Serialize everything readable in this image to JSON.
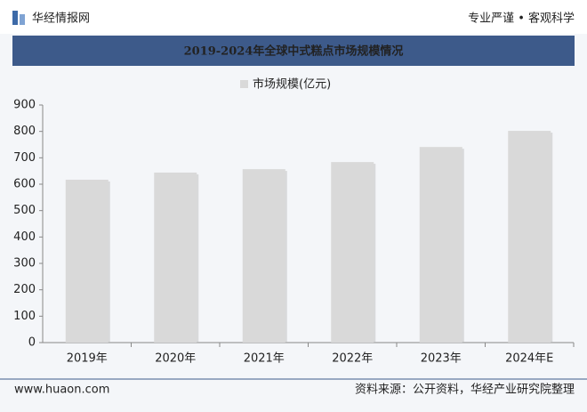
{
  "brand": "华经情报网",
  "slogan": "专业严谨 • 客观科学",
  "chart_data": {
    "type": "bar",
    "title": "2019-2024年全球中式糕点市场规模情况",
    "categories": [
      "2019年",
      "2020年",
      "2021年",
      "2022年",
      "2023年",
      "2024年E"
    ],
    "series": [
      {
        "name": "市场规模(亿元)",
        "color": "#d9d9d9",
        "values": [
          617,
          644,
          657,
          684,
          741,
          802
        ]
      }
    ],
    "ylim": [
      0,
      900
    ],
    "yticks": [
      0,
      100,
      200,
      300,
      400,
      500,
      600,
      700,
      800,
      900
    ],
    "grid": false,
    "legend": "top"
  },
  "footer": {
    "website": "www.huaon.com",
    "source": "资料来源：公开资料，华经产业研究院整理"
  }
}
